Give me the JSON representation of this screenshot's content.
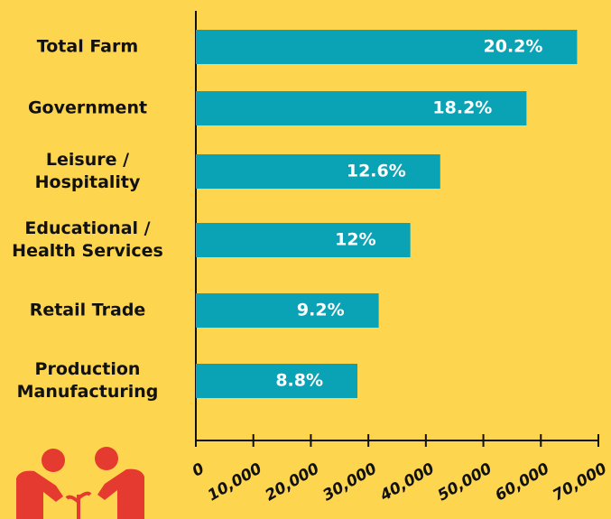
{
  "chart_data": {
    "type": "bar",
    "orientation": "horizontal",
    "categories": [
      "Total Farm",
      "Government",
      "Leisure /\nHospitality",
      "Educational /\nHealth Services",
      "Retail Trade",
      "Production\nManufacturing"
    ],
    "values": [
      66300,
      57500,
      42500,
      37300,
      31800,
      28100
    ],
    "bar_labels": [
      "20.2%",
      "18.2%",
      "12.6%",
      "12%",
      "9.2%",
      "8.8%"
    ],
    "color": "#0aa3b5",
    "xlim": [
      0,
      70000
    ],
    "xticks": [
      0,
      {
        "value": 10000,
        "label": "10,000"
      },
      {
        "value": 20000,
        "label": "20,000"
      },
      {
        "value": 30000,
        "label": "30,000"
      },
      {
        "value": 40000,
        "label": "40,000"
      },
      {
        "value": 50000,
        "label": "50,000"
      },
      {
        "value": 60000,
        "label": "60,000"
      },
      {
        "value": 70000,
        "label": "70,000"
      }
    ],
    "grid": false
  }
}
